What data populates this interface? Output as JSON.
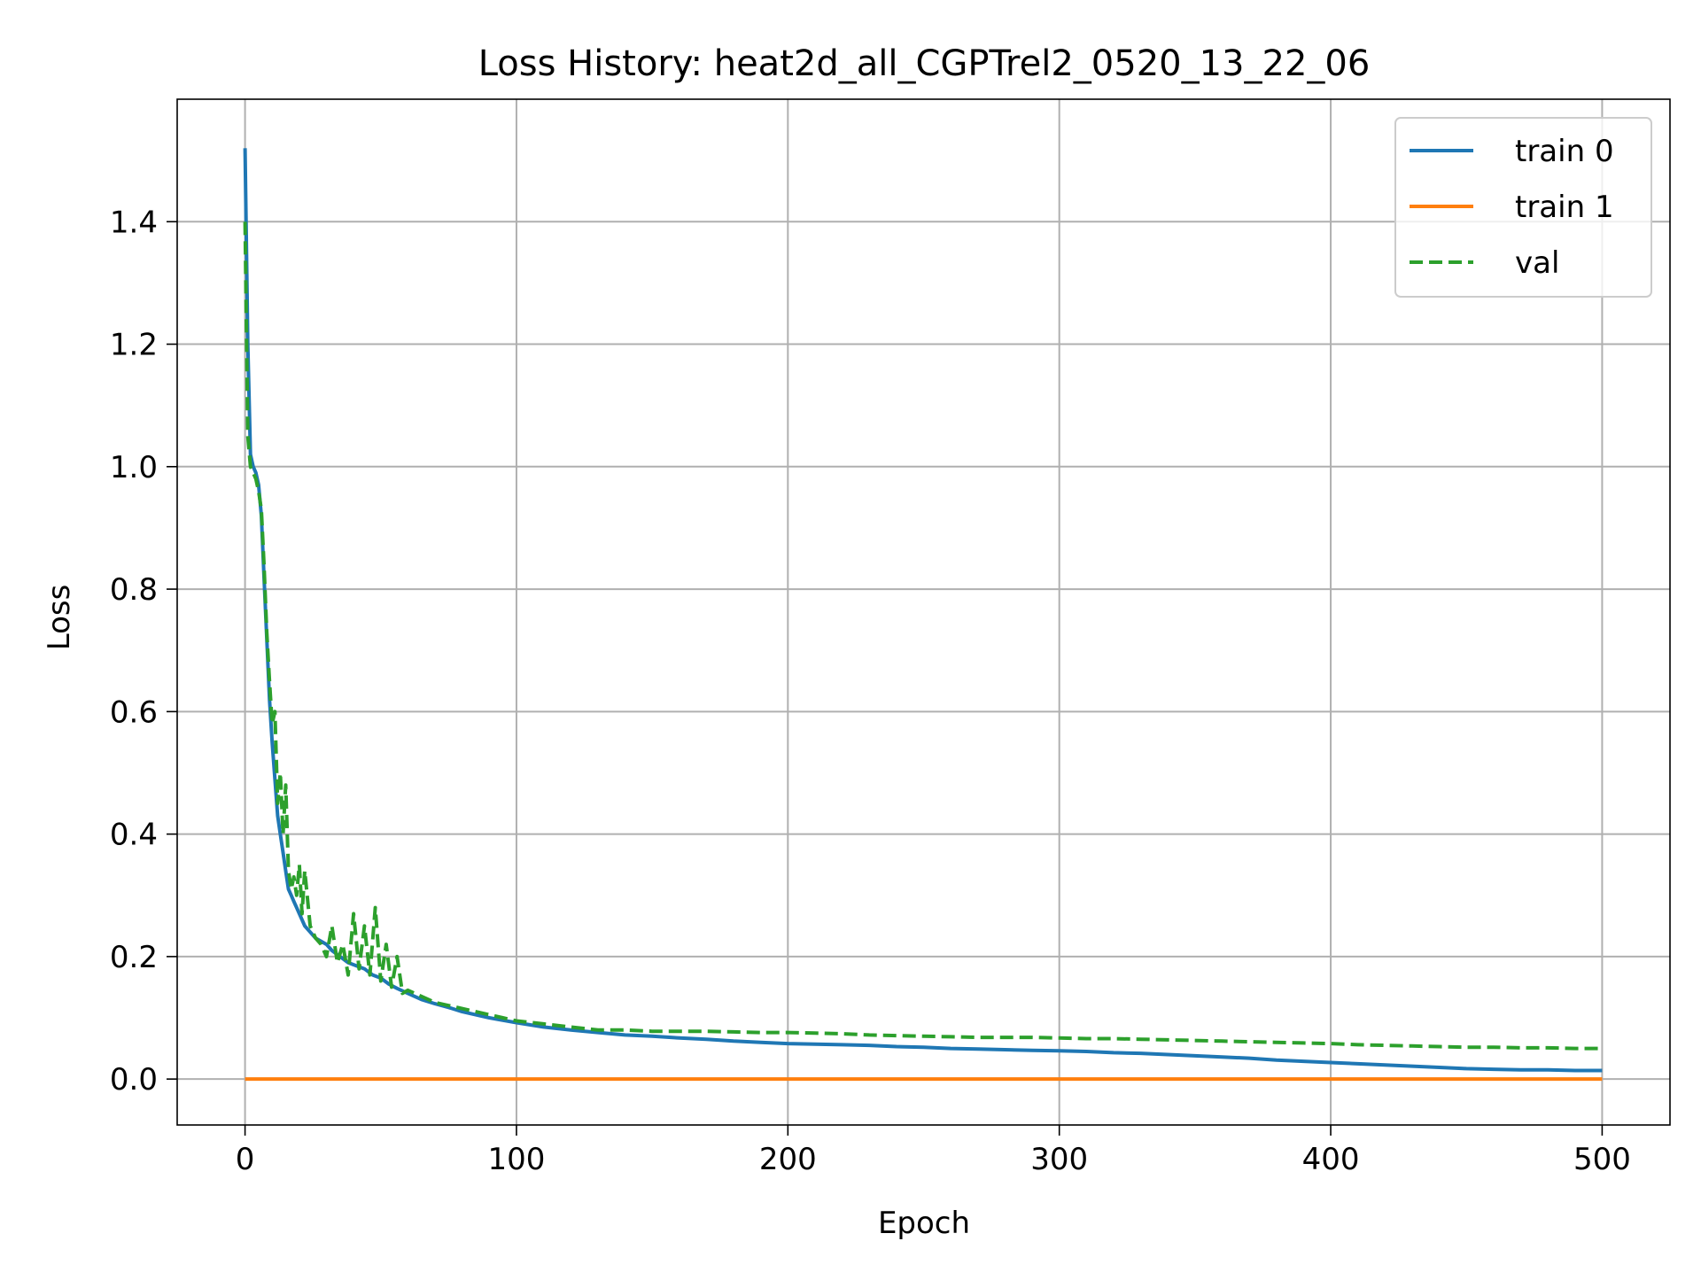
{
  "chart_data": {
    "type": "line",
    "title": "Loss History: heat2d_all_CGPTrel2_0520_13_22_06",
    "xlabel": "Epoch",
    "ylabel": "Loss",
    "xlim": [
      -25,
      525
    ],
    "ylim": [
      -0.075,
      1.6
    ],
    "xticks": [
      0,
      100,
      200,
      300,
      400,
      500
    ],
    "xtick_labels": [
      "0",
      "100",
      "200",
      "300",
      "400",
      "500"
    ],
    "yticks": [
      0.0,
      0.2,
      0.4,
      0.6,
      0.8,
      1.0,
      1.2,
      1.4
    ],
    "ytick_labels": [
      "0.0",
      "0.2",
      "0.4",
      "0.6",
      "0.8",
      "1.0",
      "1.2",
      "1.4"
    ],
    "grid": true,
    "legend_position": "top-right",
    "series": [
      {
        "name": "train 0",
        "color": "#1f77b4",
        "style": "solid",
        "points": [
          [
            0,
            1.52
          ],
          [
            1,
            1.2
          ],
          [
            2,
            1.02
          ],
          [
            3,
            1.0
          ],
          [
            4,
            0.99
          ],
          [
            5,
            0.97
          ],
          [
            6,
            0.92
          ],
          [
            7,
            0.82
          ],
          [
            8,
            0.72
          ],
          [
            9,
            0.62
          ],
          [
            10,
            0.55
          ],
          [
            11,
            0.49
          ],
          [
            12,
            0.43
          ],
          [
            13,
            0.4
          ],
          [
            14,
            0.37
          ],
          [
            15,
            0.34
          ],
          [
            16,
            0.31
          ],
          [
            17,
            0.3
          ],
          [
            18,
            0.29
          ],
          [
            19,
            0.28
          ],
          [
            20,
            0.27
          ],
          [
            22,
            0.25
          ],
          [
            24,
            0.24
          ],
          [
            26,
            0.23
          ],
          [
            28,
            0.225
          ],
          [
            30,
            0.22
          ],
          [
            32,
            0.21
          ],
          [
            35,
            0.2
          ],
          [
            38,
            0.19
          ],
          [
            41,
            0.185
          ],
          [
            44,
            0.18
          ],
          [
            47,
            0.17
          ],
          [
            50,
            0.165
          ],
          [
            53,
            0.155
          ],
          [
            56,
            0.148
          ],
          [
            60,
            0.14
          ],
          [
            65,
            0.13
          ],
          [
            70,
            0.123
          ],
          [
            75,
            0.117
          ],
          [
            80,
            0.11
          ],
          [
            85,
            0.105
          ],
          [
            90,
            0.1
          ],
          [
            95,
            0.096
          ],
          [
            100,
            0.092
          ],
          [
            110,
            0.085
          ],
          [
            120,
            0.08
          ],
          [
            130,
            0.076
          ],
          [
            140,
            0.072
          ],
          [
            150,
            0.07
          ],
          [
            160,
            0.067
          ],
          [
            170,
            0.065
          ],
          [
            180,
            0.062
          ],
          [
            190,
            0.06
          ],
          [
            200,
            0.058
          ],
          [
            210,
            0.057
          ],
          [
            220,
            0.056
          ],
          [
            230,
            0.055
          ],
          [
            240,
            0.053
          ],
          [
            250,
            0.052
          ],
          [
            260,
            0.05
          ],
          [
            270,
            0.049
          ],
          [
            280,
            0.048
          ],
          [
            290,
            0.047
          ],
          [
            300,
            0.046
          ],
          [
            310,
            0.045
          ],
          [
            320,
            0.043
          ],
          [
            330,
            0.042
          ],
          [
            340,
            0.04
          ],
          [
            350,
            0.038
          ],
          [
            360,
            0.036
          ],
          [
            370,
            0.034
          ],
          [
            380,
            0.031
          ],
          [
            390,
            0.029
          ],
          [
            400,
            0.027
          ],
          [
            410,
            0.025
          ],
          [
            420,
            0.023
          ],
          [
            430,
            0.021
          ],
          [
            440,
            0.019
          ],
          [
            450,
            0.017
          ],
          [
            460,
            0.016
          ],
          [
            470,
            0.015
          ],
          [
            480,
            0.015
          ],
          [
            490,
            0.014
          ],
          [
            500,
            0.014
          ]
        ]
      },
      {
        "name": "train 1",
        "color": "#ff7f0e",
        "style": "solid",
        "points": [
          [
            0,
            0.0
          ],
          [
            500,
            0.0
          ]
        ]
      },
      {
        "name": "val",
        "color": "#2ca02c",
        "style": "dashed",
        "points": [
          [
            0,
            1.4
          ],
          [
            1,
            1.05
          ],
          [
            2,
            1.0
          ],
          [
            3,
            0.99
          ],
          [
            4,
            0.98
          ],
          [
            5,
            0.96
          ],
          [
            6,
            0.93
          ],
          [
            7,
            0.84
          ],
          [
            8,
            0.73
          ],
          [
            9,
            0.65
          ],
          [
            10,
            0.58
          ],
          [
            11,
            0.6
          ],
          [
            12,
            0.45
          ],
          [
            13,
            0.5
          ],
          [
            14,
            0.4
          ],
          [
            15,
            0.48
          ],
          [
            16,
            0.34
          ],
          [
            17,
            0.31
          ],
          [
            18,
            0.33
          ],
          [
            19,
            0.3
          ],
          [
            20,
            0.35
          ],
          [
            21,
            0.27
          ],
          [
            22,
            0.34
          ],
          [
            24,
            0.25
          ],
          [
            26,
            0.23
          ],
          [
            28,
            0.22
          ],
          [
            30,
            0.2
          ],
          [
            32,
            0.25
          ],
          [
            34,
            0.19
          ],
          [
            36,
            0.22
          ],
          [
            38,
            0.17
          ],
          [
            40,
            0.27
          ],
          [
            42,
            0.18
          ],
          [
            44,
            0.25
          ],
          [
            46,
            0.17
          ],
          [
            48,
            0.28
          ],
          [
            50,
            0.16
          ],
          [
            52,
            0.22
          ],
          [
            54,
            0.15
          ],
          [
            56,
            0.2
          ],
          [
            58,
            0.14
          ],
          [
            60,
            0.145
          ],
          [
            65,
            0.135
          ],
          [
            70,
            0.125
          ],
          [
            75,
            0.12
          ],
          [
            80,
            0.115
          ],
          [
            85,
            0.11
          ],
          [
            90,
            0.105
          ],
          [
            95,
            0.1
          ],
          [
            100,
            0.095
          ],
          [
            110,
            0.09
          ],
          [
            120,
            0.085
          ],
          [
            130,
            0.08
          ],
          [
            140,
            0.08
          ],
          [
            150,
            0.078
          ],
          [
            160,
            0.078
          ],
          [
            170,
            0.078
          ],
          [
            180,
            0.077
          ],
          [
            190,
            0.076
          ],
          [
            200,
            0.076
          ],
          [
            210,
            0.075
          ],
          [
            220,
            0.074
          ],
          [
            230,
            0.072
          ],
          [
            240,
            0.071
          ],
          [
            250,
            0.07
          ],
          [
            260,
            0.069
          ],
          [
            270,
            0.068
          ],
          [
            280,
            0.068
          ],
          [
            290,
            0.068
          ],
          [
            300,
            0.067
          ],
          [
            310,
            0.066
          ],
          [
            320,
            0.066
          ],
          [
            330,
            0.065
          ],
          [
            340,
            0.064
          ],
          [
            350,
            0.063
          ],
          [
            360,
            0.062
          ],
          [
            370,
            0.061
          ],
          [
            380,
            0.06
          ],
          [
            390,
            0.059
          ],
          [
            400,
            0.058
          ],
          [
            410,
            0.056
          ],
          [
            420,
            0.055
          ],
          [
            430,
            0.054
          ],
          [
            440,
            0.053
          ],
          [
            450,
            0.052
          ],
          [
            460,
            0.052
          ],
          [
            470,
            0.051
          ],
          [
            480,
            0.051
          ],
          [
            490,
            0.05
          ],
          [
            500,
            0.05
          ]
        ]
      }
    ]
  }
}
